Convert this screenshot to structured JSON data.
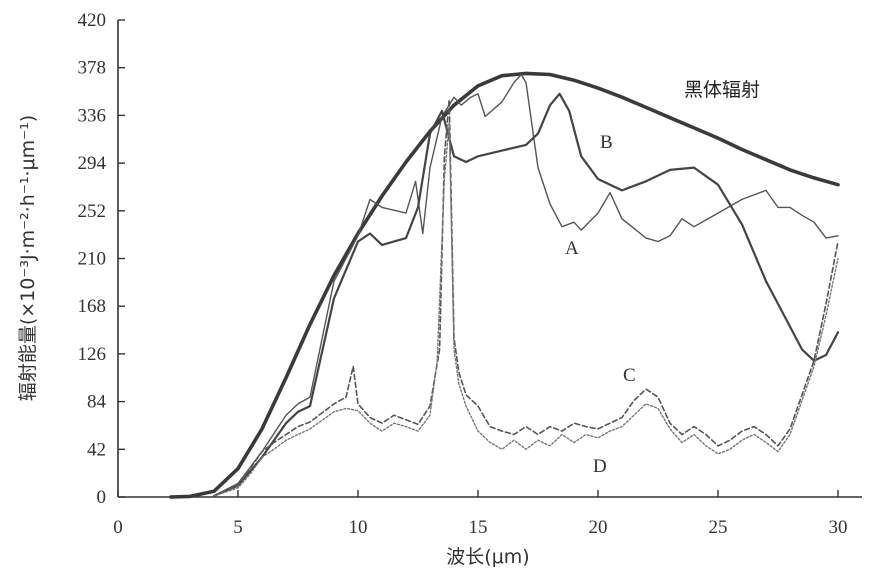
{
  "chart_data": {
    "type": "line",
    "xlabel": "波长(μm)",
    "ylabel": "辐射能量(×10⁻³J·m⁻²·h⁻¹·μm⁻¹)",
    "xlim": [
      0,
      31
    ],
    "ylim": [
      0,
      420
    ],
    "xticks": [
      0,
      5,
      10,
      15,
      20,
      25,
      30
    ],
    "yticks": [
      0,
      42,
      84,
      126,
      168,
      210,
      252,
      294,
      336,
      378,
      420
    ],
    "series": [
      {
        "name": "黑体辐射",
        "style": "solid-thick",
        "x": [
          2.2,
          3,
          4,
          5,
          6,
          7,
          8,
          9,
          10,
          11,
          12,
          13,
          14,
          15,
          16,
          17,
          18,
          19,
          20,
          21,
          22,
          23,
          24,
          25,
          26,
          27,
          28,
          29,
          30
        ],
        "y": [
          0,
          0.5,
          5,
          25,
          60,
          105,
          152,
          195,
          232,
          265,
          295,
          322,
          345,
          362,
          371,
          373,
          372,
          367,
          360,
          352,
          343,
          334,
          325,
          316,
          306,
          297,
          288,
          281,
          275
        ]
      },
      {
        "name": "A",
        "style": "solid-thin",
        "x": [
          4,
          5,
          6,
          7,
          7.5,
          8,
          9,
          10,
          10.5,
          11,
          12,
          12.4,
          12.7,
          13,
          13.5,
          14,
          14.3,
          14.7,
          15,
          15.3,
          16,
          16.5,
          16.8,
          17,
          17.5,
          18,
          18.5,
          19,
          19.3,
          20,
          20.5,
          21,
          22,
          22.5,
          23,
          23.5,
          24,
          25,
          26,
          27,
          27.5,
          28,
          28.5,
          29,
          29.5,
          30
        ],
        "y": [
          1,
          12,
          40,
          72,
          82,
          88,
          190,
          230,
          262,
          255,
          250,
          278,
          232,
          290,
          335,
          352,
          345,
          352,
          355,
          335,
          348,
          365,
          372,
          365,
          290,
          258,
          238,
          242,
          235,
          250,
          268,
          245,
          228,
          225,
          230,
          245,
          238,
          250,
          262,
          270,
          255,
          255,
          248,
          242,
          228,
          230
        ]
      },
      {
        "name": "B",
        "style": "solid-medium",
        "x": [
          4,
          5,
          6,
          7,
          7.5,
          8,
          9,
          10,
          10.5,
          11,
          12,
          12.5,
          13,
          13.5,
          14,
          14.5,
          15,
          16,
          17,
          17.5,
          18,
          18.4,
          18.8,
          19.3,
          20,
          21,
          22,
          23,
          24,
          25,
          26,
          26.5,
          27,
          27.5,
          28,
          28.5,
          29,
          29.5,
          30
        ],
        "y": [
          1,
          10,
          35,
          65,
          75,
          80,
          175,
          225,
          232,
          222,
          228,
          255,
          320,
          340,
          300,
          295,
          300,
          305,
          310,
          320,
          345,
          355,
          340,
          300,
          280,
          270,
          278,
          288,
          290,
          275,
          240,
          215,
          190,
          170,
          150,
          130,
          120,
          125,
          145
        ]
      },
      {
        "name": "C",
        "style": "dashed",
        "x": [
          4,
          5,
          5.5,
          6,
          6.5,
          7,
          7.5,
          8,
          9,
          9.5,
          9.8,
          10,
          10.5,
          11,
          11.5,
          12,
          12.5,
          13,
          13.4,
          13.6,
          13.8,
          14,
          14.2,
          14.5,
          15,
          15.5,
          16,
          16.5,
          17,
          17.5,
          18,
          18.5,
          19,
          19.5,
          20,
          20.5,
          21,
          21.5,
          22,
          22.5,
          23,
          23.5,
          24,
          24.5,
          25,
          25.5,
          26,
          26.5,
          27,
          27.5,
          28,
          28.5,
          29,
          29.5,
          30
        ],
        "y": [
          1,
          10,
          25,
          40,
          48,
          55,
          62,
          66,
          82,
          88,
          115,
          82,
          70,
          65,
          72,
          68,
          64,
          80,
          130,
          300,
          350,
          140,
          110,
          90,
          80,
          62,
          58,
          55,
          62,
          55,
          62,
          58,
          65,
          62,
          60,
          65,
          70,
          85,
          95,
          88,
          65,
          55,
          62,
          55,
          45,
          50,
          58,
          62,
          55,
          45,
          60,
          90,
          120,
          170,
          225
        ]
      },
      {
        "name": "D",
        "style": "dotted",
        "x": [
          4,
          5,
          5.5,
          6,
          6.5,
          7,
          7.5,
          8,
          9,
          9.5,
          10,
          10.5,
          11,
          11.5,
          12,
          12.5,
          13,
          13.3,
          13.6,
          13.8,
          14,
          14.2,
          14.5,
          15,
          15.5,
          16,
          16.5,
          17,
          17.5,
          18,
          18.5,
          19,
          19.5,
          20,
          20.5,
          21,
          21.5,
          22,
          22.5,
          23,
          23.5,
          24,
          24.5,
          25,
          25.5,
          26,
          26.5,
          27,
          27.5,
          28,
          28.5,
          29,
          29.5,
          30
        ],
        "y": [
          1,
          8,
          20,
          35,
          42,
          50,
          55,
          60,
          75,
          78,
          76,
          65,
          58,
          65,
          62,
          58,
          72,
          120,
          280,
          330,
          130,
          100,
          80,
          58,
          48,
          42,
          50,
          42,
          50,
          45,
          55,
          48,
          55,
          52,
          58,
          62,
          72,
          82,
          78,
          60,
          48,
          55,
          45,
          38,
          42,
          50,
          55,
          48,
          40,
          55,
          85,
          115,
          160,
          210
        ]
      }
    ],
    "labels": [
      "黑体辐射",
      "B",
      "A",
      "C",
      "D"
    ]
  }
}
